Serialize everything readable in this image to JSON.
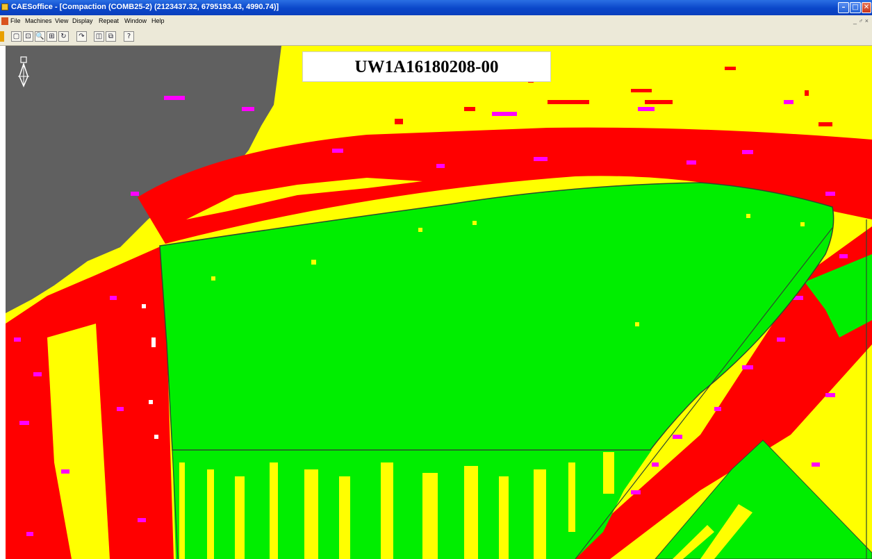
{
  "window": {
    "title": "CAESoffice - [Compaction (COMB25-2)    (2123437.32, 6795193.43, 4990.74)]",
    "min_glyph": "–",
    "max_glyph": "□",
    "close_glyph": "✕"
  },
  "doc_label": "UW1A16180208-00",
  "menu": [
    {
      "label": "File"
    },
    {
      "label": "Machines"
    },
    {
      "label": "View"
    },
    {
      "label": "Display"
    },
    {
      "label": "Repeat"
    },
    {
      "label": "Window"
    },
    {
      "label": "Help"
    }
  ],
  "mdi_controls": "_ ♂ ×",
  "toolbar": [
    {
      "icon": "select-icon",
      "glyph": "▢"
    },
    {
      "icon": "pan-icon",
      "glyph": "⊡"
    },
    {
      "icon": "zoom-icon",
      "glyph": "🔍"
    },
    {
      "icon": "zoom-box-icon",
      "glyph": "⊞"
    },
    {
      "icon": "refresh-icon",
      "glyph": "↻"
    },
    {
      "icon": "redo-icon",
      "glyph": "↷"
    },
    {
      "icon": "tile-icon",
      "glyph": "◫"
    },
    {
      "icon": "layers-icon",
      "glyph": "⧉"
    },
    {
      "icon": "help-icon",
      "glyph": "?"
    }
  ],
  "colors": {
    "fill_high": "#00ee00",
    "fill_mid": "#ffff00",
    "fill_low": "#ff0000",
    "fill_edge": "#ff00ff",
    "no_data": "#606060",
    "outline": "#2d4a2d"
  }
}
